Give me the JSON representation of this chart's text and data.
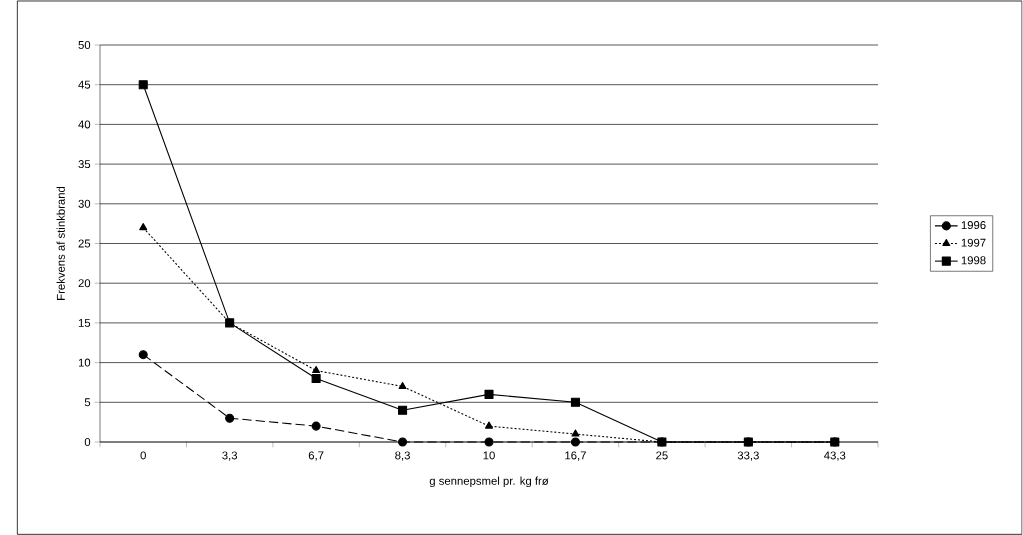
{
  "chart_data": {
    "type": "line",
    "xlabel": "g sennepsmel pr. kg frø",
    "ylabel": "Frekvens af stinkbrand",
    "categories": [
      "0",
      "3,3",
      "6,7",
      "8,3",
      "10",
      "16,7",
      "25",
      "33,3",
      "43,3"
    ],
    "series": [
      {
        "name": "1996",
        "color": "#000000",
        "marker": "circle",
        "line_style": "dashed",
        "values": [
          11,
          3,
          2,
          0,
          0,
          0,
          0,
          0,
          0
        ]
      },
      {
        "name": "1997",
        "color": "#000000",
        "marker": "triangle",
        "line_style": "dotted",
        "values": [
          27,
          15,
          9,
          7,
          2,
          1,
          0,
          0,
          0
        ]
      },
      {
        "name": "1998",
        "color": "#000000",
        "marker": "square",
        "line_style": "solid",
        "values": [
          45,
          15,
          8,
          4,
          6,
          5,
          0,
          0,
          0
        ]
      }
    ],
    "ylim": [
      0,
      50
    ],
    "yticks": [
      0,
      5,
      10,
      15,
      20,
      25,
      30,
      35,
      40,
      45,
      50
    ],
    "grid": "y",
    "legend": "right"
  }
}
